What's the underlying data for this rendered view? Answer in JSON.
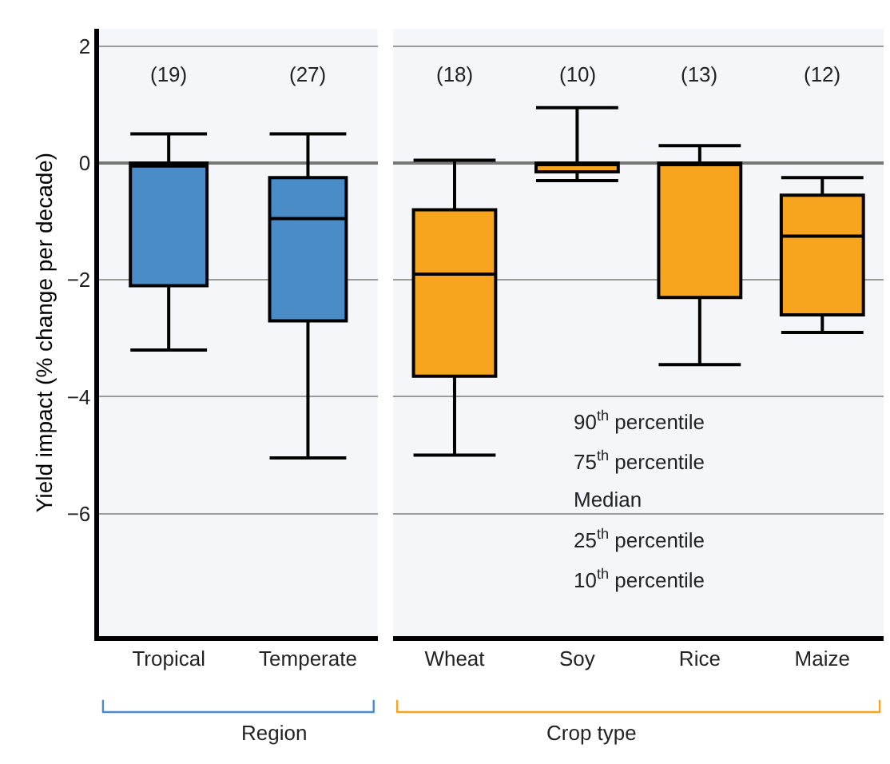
{
  "chart_data": [
    {
      "type": "box",
      "ylabel": "Yield impact (% change per decade)",
      "xlabel": "Region",
      "categories": [
        "Tropical",
        "Temperate"
      ],
      "color": "#4a8cc8",
      "ylim": [
        -8.1,
        2.3
      ],
      "yticks": [
        {
          "value": -6,
          "label": "−6"
        },
        {
          "value": -4,
          "label": "−4"
        },
        {
          "value": -2,
          "label": "−2"
        },
        0,
        2
      ],
      "grid": "y",
      "boxes": [
        {
          "low": -3.2,
          "q1": -2.1,
          "median": -0.05,
          "q3": 0,
          "high": 0.5
        },
        {
          "low": -5.05,
          "q1": -2.7,
          "median": -0.95,
          "q3": -0.25,
          "high": 0.5
        }
      ],
      "annotations": [
        "(19)",
        "(27)"
      ]
    },
    {
      "type": "box",
      "xlabel": "Crop type",
      "categories": [
        "Wheat",
        "Soy",
        "Rice",
        "Maize"
      ],
      "color": "#f7a51e",
      "ylim": [
        -8.1,
        2.3
      ],
      "yticks": [
        -6,
        -4,
        -2,
        0,
        2
      ],
      "grid": "y",
      "tick_labels": "x",
      "boxes": [
        {
          "low": -5.0,
          "q1": -3.65,
          "median": -1.9,
          "q3": -0.8,
          "high": 0.05
        },
        {
          "low": -0.3,
          "q1": -0.15,
          "median": 0,
          "q3": 0,
          "high": 0.95
        },
        {
          "low": -3.45,
          "q1": -2.3,
          "median": 0,
          "q3": 0,
          "high": 0.3
        },
        {
          "low": -2.9,
          "q1": -2.6,
          "median": -1.25,
          "q3": -0.55,
          "high": -0.25
        }
      ],
      "annotations": [
        "(18)",
        "(10)",
        "(13)",
        "(12)",
        "90$^{th}$ percentile",
        "75$^{th}$ percentile",
        "Median",
        "25$^{th}$ percentile",
        "10$^{th}$ percentile"
      ]
    }
  ]
}
